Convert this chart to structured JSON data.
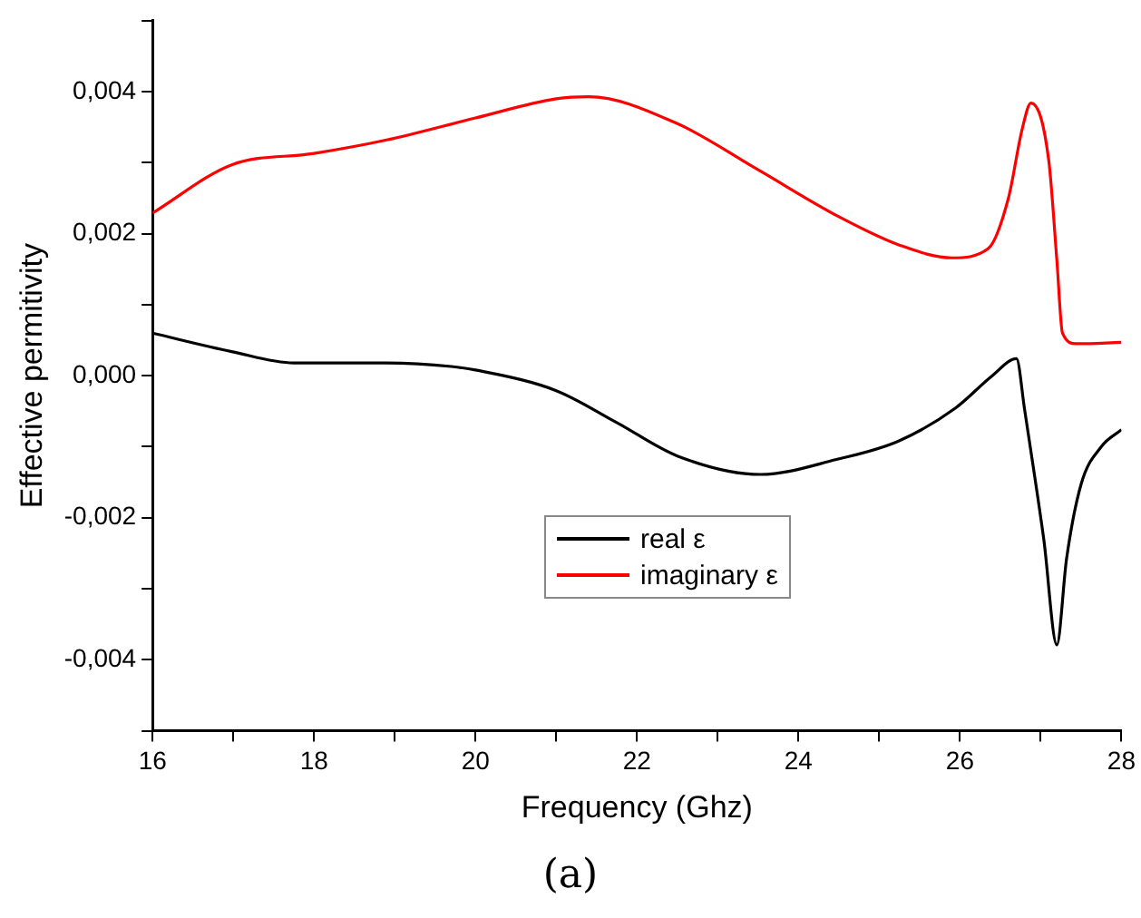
{
  "chart_data": {
    "type": "line",
    "xlabel": "Frequency (Ghz)",
    "ylabel": "Effective permitivity",
    "annotations": [
      "(a)"
    ],
    "xlim": [
      16,
      28
    ],
    "xticks": [
      16,
      {
        "value": 17,
        "label": null
      },
      18,
      {
        "value": 19,
        "label": null
      },
      20,
      {
        "value": 21,
        "label": null
      },
      22,
      {
        "value": 23,
        "label": null
      },
      24,
      {
        "value": 25,
        "label": null
      },
      26,
      {
        "value": 27,
        "label": null
      },
      28
    ],
    "ylim": [
      -0.005,
      0.005
    ],
    "yticks": [
      {
        "value": -0.005,
        "label": null
      },
      {
        "value": -0.004,
        "label": "-0,004"
      },
      {
        "value": -0.003,
        "label": null
      },
      {
        "value": -0.002,
        "label": "-0,002"
      },
      {
        "value": -0.001,
        "label": null
      },
      {
        "value": 0,
        "label": "0,000"
      },
      {
        "value": 0.001,
        "label": null
      },
      {
        "value": 0.002,
        "label": "0,002"
      },
      {
        "value": 0.003,
        "label": null
      },
      {
        "value": 0.004,
        "label": "0,004"
      },
      {
        "value": 0.005,
        "label": null
      }
    ],
    "grid": false,
    "legend": "bottom",
    "marker": "none",
    "line_style": "solid",
    "series": [
      {
        "name": "real ε",
        "color": "#000000",
        "x": [
          16,
          16.98,
          17.75,
          18.9,
          19.7,
          20,
          21,
          21.75,
          22.5,
          23.53,
          24.47,
          25.24,
          25.95,
          26.4,
          26.7,
          26.8,
          26.93,
          27.04,
          27.2,
          27.32,
          27.5,
          27.75,
          28
        ],
        "values": [
          0.0006,
          0.00034,
          0.00018,
          0.00018,
          0.00013,
          8e-05,
          -0.00021,
          -0.00066,
          -0.00113,
          -0.00139,
          -0.00118,
          -0.00092,
          -0.00045,
          0,
          0.00024,
          -0.00047,
          -0.00145,
          -0.00232,
          -0.00379,
          -0.00258,
          -0.00153,
          -0.001,
          -0.00076
        ]
      },
      {
        "name": "imaginary ε",
        "color": "#ff0000",
        "x": [
          16,
          16.98,
          18,
          18.9,
          20,
          21,
          21.4,
          22.5,
          23.5,
          24.5,
          25.25,
          25.9,
          26.35,
          26.6,
          26.77,
          26.88,
          27.1,
          27.2,
          27.27,
          27.44,
          28
        ],
        "values": [
          0.00229,
          0.00297,
          0.00313,
          0.00332,
          0.00363,
          0.0039,
          0.00393,
          0.00355,
          0.0029,
          0.00224,
          0.00184,
          0.00166,
          0.00179,
          0.0025,
          0.00347,
          0.00384,
          0.00303,
          0.00163,
          0.0006,
          0.00045,
          0.00047
        ]
      }
    ]
  }
}
